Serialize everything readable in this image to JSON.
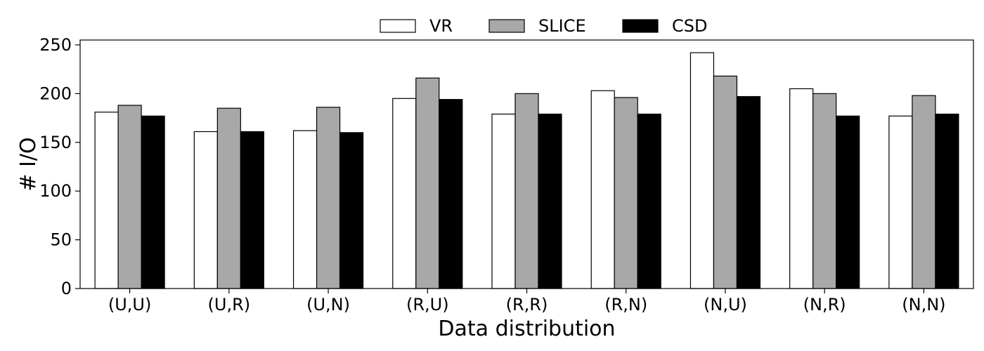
{
  "chart_data": {
    "type": "bar",
    "title": "",
    "xlabel": "Data distribution",
    "ylabel": "# I/O",
    "ylim": [
      0,
      255
    ],
    "yticks": [
      0,
      50,
      100,
      150,
      200,
      250
    ],
    "categories": [
      "(U,U)",
      "(U,R)",
      "(U,N)",
      "(R,U)",
      "(R,R)",
      "(R,N)",
      "(N,U)",
      "(N,R)",
      "(N,N)"
    ],
    "series": [
      {
        "name": "VR",
        "color": "#ffffff",
        "values": [
          181,
          161,
          162,
          195,
          179,
          203,
          242,
          205,
          177
        ]
      },
      {
        "name": "SLICE",
        "color": "#a8a8a8",
        "values": [
          188,
          185,
          186,
          216,
          200,
          196,
          218,
          200,
          198
        ]
      },
      {
        "name": "CSD",
        "color": "#000000",
        "values": [
          177,
          161,
          160,
          194,
          179,
          179,
          197,
          177,
          179
        ]
      }
    ],
    "legend_position": "top-center",
    "grid": false
  }
}
